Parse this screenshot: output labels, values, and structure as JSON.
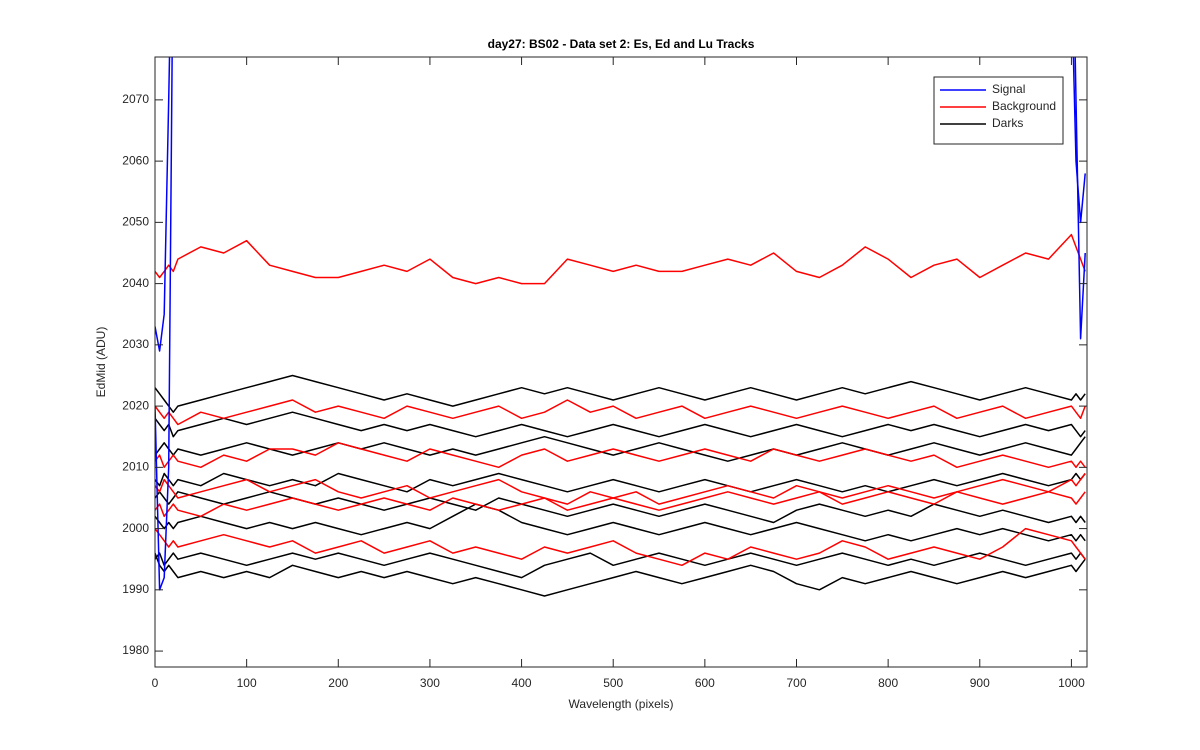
{
  "chart_data": {
    "type": "line",
    "title": "day27: BS02 - Data set 2: Es, Ed and Lu Tracks",
    "xlabel": "Wavelength (pixels)",
    "ylabel": "EdMid (ADU)",
    "legend": "northeast",
    "grid": false,
    "xlim": [
      0,
      1017
    ],
    "ylim": [
      1977.4,
      2077.0
    ],
    "xticks": [
      0,
      100,
      200,
      300,
      400,
      500,
      600,
      700,
      800,
      900,
      1000
    ],
    "yticks": [
      1980,
      1990,
      2000,
      2010,
      2020,
      2030,
      2040,
      2050,
      2060,
      2070
    ],
    "x": [
      0,
      5,
      10,
      15,
      20,
      25,
      50,
      75,
      100,
      125,
      150,
      175,
      200,
      225,
      250,
      275,
      300,
      325,
      350,
      375,
      400,
      425,
      450,
      475,
      500,
      525,
      550,
      575,
      600,
      625,
      650,
      675,
      700,
      725,
      750,
      775,
      800,
      825,
      850,
      875,
      900,
      925,
      950,
      975,
      1000,
      1005,
      1010,
      1015
    ],
    "series": [
      {
        "name": "Signal",
        "color": "#0000ff",
        "values": [
          [
            2033,
            2029,
            2035,
            2070,
            2110,
            null,
            null,
            null,
            null,
            null,
            null,
            null,
            null,
            null,
            null,
            null,
            null,
            null,
            null,
            null,
            null,
            null,
            null,
            null,
            null,
            null,
            null,
            null,
            null,
            null,
            null,
            null,
            null,
            null,
            null,
            null,
            null,
            null,
            null,
            null,
            null,
            null,
            null,
            null,
            2110,
            2070,
            2031,
            2045
          ],
          [
            2020,
            1990,
            1992,
            2010,
            2100,
            null,
            null,
            null,
            null,
            null,
            null,
            null,
            null,
            null,
            null,
            null,
            null,
            null,
            null,
            null,
            null,
            null,
            null,
            null,
            null,
            null,
            null,
            null,
            null,
            null,
            null,
            null,
            null,
            null,
            null,
            null,
            null,
            null,
            null,
            null,
            null,
            null,
            null,
            null,
            2090,
            2060,
            2050,
            2058
          ]
        ]
      },
      {
        "name": "Background",
        "color": "#ff0000",
        "values": [
          [
            2042,
            2041,
            2042,
            2043,
            2042,
            2044,
            2046,
            2045,
            2047,
            2043,
            2042,
            2041,
            2041,
            2042,
            2043,
            2042,
            2044,
            2041,
            2040,
            2041,
            2040,
            2040,
            2044,
            2043,
            2042,
            2043,
            2042,
            2042,
            2043,
            2044,
            2043,
            2045,
            2042,
            2041,
            2043,
            2046,
            2044,
            2041,
            2043,
            2044,
            2041,
            2043,
            2045,
            2044,
            2048,
            2046,
            2044,
            2042
          ],
          [
            2020,
            2019,
            2018,
            2019,
            2018,
            2017,
            2019,
            2018,
            2019,
            2020,
            2021,
            2019,
            2020,
            2019,
            2018,
            2020,
            2019,
            2018,
            2019,
            2020,
            2018,
            2019,
            2021,
            2019,
            2020,
            2018,
            2019,
            2020,
            2018,
            2019,
            2020,
            2019,
            2018,
            2019,
            2020,
            2019,
            2018,
            2019,
            2020,
            2018,
            2019,
            2020,
            2018,
            2019,
            2020,
            2019,
            2018,
            2020
          ],
          [
            2011,
            2012,
            2010,
            2011,
            2012,
            2011,
            2010,
            2012,
            2011,
            2013,
            2013,
            2012,
            2014,
            2013,
            2012,
            2011,
            2013,
            2012,
            2011,
            2010,
            2012,
            2013,
            2011,
            2012,
            2013,
            2012,
            2011,
            2012,
            2013,
            2012,
            2011,
            2013,
            2012,
            2011,
            2012,
            2013,
            2012,
            2011,
            2012,
            2010,
            2011,
            2012,
            2011,
            2010,
            2011,
            2010,
            2011,
            2010
          ],
          [
            2007,
            2006,
            2008,
            2007,
            2006,
            2005,
            2006,
            2007,
            2008,
            2006,
            2007,
            2008,
            2006,
            2005,
            2006,
            2007,
            2005,
            2006,
            2007,
            2008,
            2006,
            2005,
            2004,
            2006,
            2005,
            2006,
            2004,
            2005,
            2006,
            2007,
            2006,
            2005,
            2007,
            2006,
            2005,
            2006,
            2007,
            2006,
            2005,
            2006,
            2007,
            2008,
            2007,
            2006,
            2008,
            2007,
            2008,
            2009
          ],
          [
            2000,
            1999,
            1998,
            1997,
            1998,
            1997,
            1998,
            1999,
            1998,
            1997,
            1998,
            1996,
            1997,
            1998,
            1996,
            1997,
            1998,
            1996,
            1997,
            1996,
            1995,
            1997,
            1996,
            1997,
            1998,
            1996,
            1995,
            1994,
            1996,
            1995,
            1997,
            1996,
            1995,
            1996,
            1998,
            1997,
            1995,
            1996,
            1997,
            1996,
            1995,
            1997,
            2000,
            1999,
            1998,
            1997,
            1996,
            1995
          ],
          [
            2003,
            2004,
            2002,
            2003,
            2004,
            2003,
            2002,
            2004,
            2003,
            2004,
            2005,
            2004,
            2003,
            2004,
            2005,
            2004,
            2003,
            2005,
            2004,
            2003,
            2004,
            2005,
            2003,
            2004,
            2005,
            2004,
            2003,
            2004,
            2005,
            2006,
            2005,
            2004,
            2005,
            2006,
            2004,
            2005,
            2006,
            2005,
            2004,
            2006,
            2005,
            2004,
            2005,
            2006,
            2005,
            2004,
            2005,
            2006
          ]
        ]
      },
      {
        "name": "Darks",
        "color": "#000000",
        "values": [
          [
            2023,
            2022,
            2021,
            2020,
            2019,
            2020,
            2021,
            2022,
            2023,
            2024,
            2025,
            2024,
            2023,
            2022,
            2021,
            2022,
            2021,
            2020,
            2021,
            2022,
            2023,
            2022,
            2023,
            2022,
            2021,
            2022,
            2023,
            2022,
            2021,
            2022,
            2023,
            2022,
            2021,
            2022,
            2023,
            2022,
            2023,
            2024,
            2023,
            2022,
            2021,
            2022,
            2023,
            2022,
            2021,
            2022,
            2021,
            2022
          ],
          [
            2018,
            2017,
            2016,
            2017,
            2015,
            2016,
            2017,
            2018,
            2017,
            2018,
            2019,
            2018,
            2017,
            2016,
            2017,
            2016,
            2017,
            2016,
            2015,
            2016,
            2017,
            2016,
            2015,
            2016,
            2017,
            2016,
            2015,
            2016,
            2017,
            2016,
            2015,
            2016,
            2017,
            2016,
            2015,
            2016,
            2017,
            2016,
            2017,
            2016,
            2015,
            2016,
            2017,
            2016,
            2017,
            2016,
            2015,
            2016
          ],
          [
            2012,
            2013,
            2014,
            2013,
            2012,
            2013,
            2012,
            2013,
            2014,
            2013,
            2012,
            2013,
            2014,
            2013,
            2014,
            2013,
            2012,
            2013,
            2012,
            2013,
            2014,
            2015,
            2014,
            2013,
            2012,
            2013,
            2014,
            2013,
            2012,
            2011,
            2012,
            2013,
            2012,
            2013,
            2014,
            2013,
            2012,
            2013,
            2014,
            2013,
            2012,
            2013,
            2014,
            2013,
            2012,
            2013,
            2014,
            2015
          ],
          [
            2008,
            2007,
            2009,
            2008,
            2007,
            2008,
            2007,
            2009,
            2008,
            2007,
            2008,
            2007,
            2009,
            2008,
            2007,
            2006,
            2008,
            2007,
            2008,
            2009,
            2008,
            2007,
            2006,
            2007,
            2008,
            2007,
            2006,
            2007,
            2008,
            2007,
            2006,
            2007,
            2008,
            2007,
            2006,
            2007,
            2006,
            2007,
            2008,
            2007,
            2008,
            2009,
            2008,
            2007,
            2008,
            2009,
            2008,
            2009
          ],
          [
            2005,
            2006,
            2005,
            2004,
            2005,
            2006,
            2005,
            2004,
            2005,
            2006,
            2005,
            2004,
            2005,
            2004,
            2003,
            2004,
            2005,
            2004,
            2003,
            2005,
            2004,
            2003,
            2002,
            2003,
            2004,
            2003,
            2002,
            2003,
            2004,
            2003,
            2002,
            2001,
            2003,
            2004,
            2003,
            2002,
            2003,
            2002,
            2004,
            2003,
            2002,
            2003,
            2002,
            2001,
            2002,
            2001,
            2002,
            2001
          ],
          [
            2002,
            2001,
            2000,
            2001,
            2000,
            2001,
            2002,
            2001,
            2000,
            2001,
            2000,
            2001,
            2000,
            1999,
            2000,
            2001,
            2000,
            2002,
            2004,
            2003,
            2001,
            2000,
            1999,
            2000,
            2001,
            2000,
            1999,
            2000,
            2001,
            2000,
            1999,
            2000,
            2001,
            2000,
            1999,
            1998,
            1999,
            1998,
            1999,
            2000,
            1999,
            2000,
            1999,
            1998,
            1999,
            1998,
            1999,
            1998
          ],
          [
            1995,
            1996,
            1994,
            1995,
            1996,
            1995,
            1996,
            1995,
            1994,
            1995,
            1996,
            1995,
            1996,
            1995,
            1994,
            1995,
            1996,
            1995,
            1994,
            1993,
            1992,
            1994,
            1995,
            1996,
            1994,
            1995,
            1996,
            1995,
            1994,
            1995,
            1996,
            1995,
            1994,
            1995,
            1996,
            1995,
            1994,
            1995,
            1994,
            1995,
            1996,
            1995,
            1994,
            1995,
            1996,
            1995,
            1996,
            1995
          ],
          [
            1996,
            1994,
            1993,
            1994,
            1993,
            1992,
            1993,
            1992,
            1993,
            1992,
            1994,
            1993,
            1992,
            1993,
            1992,
            1993,
            1992,
            1991,
            1992,
            1991,
            1990,
            1989,
            1990,
            1991,
            1992,
            1993,
            1992,
            1991,
            1992,
            1993,
            1994,
            1993,
            1991,
            1990,
            1992,
            1991,
            1992,
            1993,
            1992,
            1991,
            1992,
            1993,
            1992,
            1993,
            1994,
            1993,
            1994,
            1995
          ]
        ]
      }
    ]
  }
}
